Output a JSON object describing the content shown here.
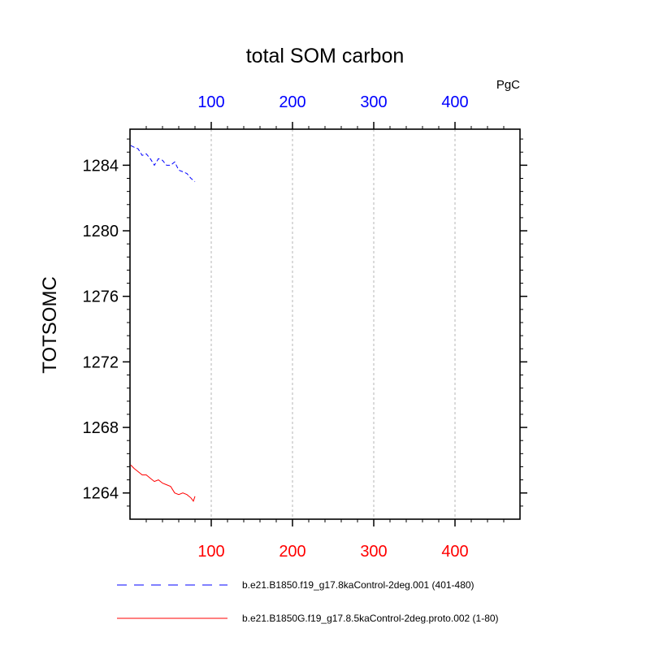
{
  "chart_data": {
    "type": "line",
    "title": "total SOM carbon",
    "units": "PgC",
    "ylabel": "TOTSOMC",
    "xlabel": "",
    "xlim": [
      0,
      480
    ],
    "ylim": [
      1262.4,
      1286.2
    ],
    "grid": "vertical dashed at top-axis ticks",
    "top_axis": {
      "ticks": [
        100,
        200,
        300,
        400
      ],
      "labels": [
        "100",
        "200",
        "300",
        "400"
      ],
      "color": "#0000ff"
    },
    "bottom_axis": {
      "ticks": [
        100,
        200,
        300,
        400
      ],
      "labels": [
        "100",
        "200",
        "300",
        "400"
      ],
      "color": "#ff0000"
    },
    "y_axis": {
      "ticks": [
        1264,
        1268,
        1272,
        1276,
        1280,
        1284
      ],
      "labels": [
        "1264",
        "1268",
        "1272",
        "1276",
        "1280",
        "1284"
      ]
    },
    "series": [
      {
        "name": "b.e21.B1850.f19_g17.8kaControl-2deg.001 (401-480)",
        "color": "#0000ff",
        "dash": "dashed",
        "x": [
          1,
          5,
          10,
          15,
          20,
          25,
          30,
          35,
          40,
          45,
          50,
          55,
          60,
          65,
          70,
          75,
          80
        ],
        "values": [
          1285.2,
          1285.1,
          1285.0,
          1284.6,
          1284.7,
          1284.4,
          1284.0,
          1284.4,
          1284.3,
          1284.0,
          1284.0,
          1284.2,
          1283.7,
          1283.6,
          1283.5,
          1283.2,
          1283.0
        ]
      },
      {
        "name": "b.e21.B1850G.f19_g17.8.5kaControl-2deg.proto.002 (1-80)",
        "color": "#ff0000",
        "dash": "solid",
        "x": [
          1,
          5,
          10,
          15,
          20,
          25,
          30,
          35,
          40,
          45,
          50,
          55,
          60,
          65,
          70,
          75,
          78,
          80
        ],
        "values": [
          1265.7,
          1265.5,
          1265.3,
          1265.1,
          1265.1,
          1264.9,
          1264.7,
          1264.8,
          1264.6,
          1264.5,
          1264.4,
          1264.0,
          1263.9,
          1264.0,
          1263.9,
          1263.7,
          1263.5,
          1263.8
        ]
      }
    ]
  }
}
